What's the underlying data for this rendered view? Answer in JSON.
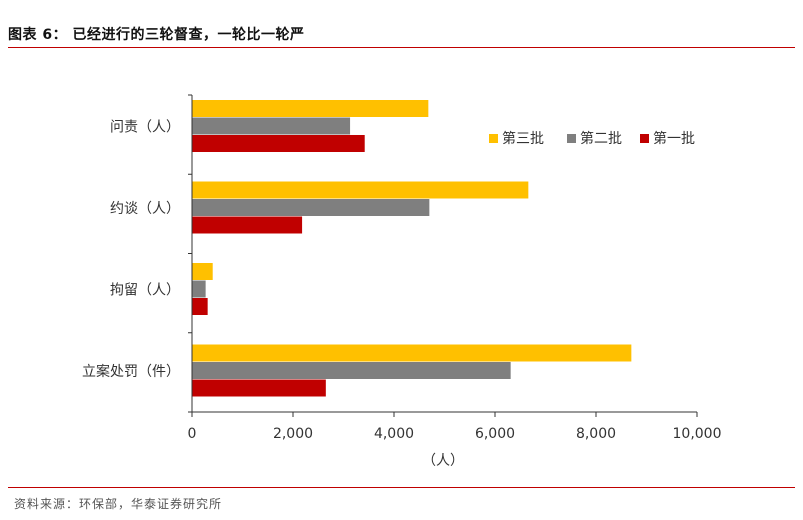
{
  "figure_title": "图表 6：  已经进行的三轮督查，一轮比一轮严",
  "source": "资料来源：环保部，华泰证券研究所",
  "chart_data": {
    "type": "bar",
    "orientation": "horizontal",
    "categories": [
      "问责（人）",
      "约谈（人）",
      "拘留（人）",
      "立案处罚（件）"
    ],
    "series": [
      {
        "name": "第三批",
        "color": "#FFC000",
        "values": [
          4680,
          6660,
          410,
          8700
        ]
      },
      {
        "name": "第二批",
        "color": "#7F7F7F",
        "values": [
          3130,
          4700,
          270,
          6310
        ]
      },
      {
        "name": "第一批",
        "color": "#C00000",
        "values": [
          3420,
          2180,
          310,
          2650
        ]
      }
    ],
    "xlabel": "（人）",
    "xlim": [
      0,
      10000
    ],
    "xticks": [
      0,
      2000,
      4000,
      6000,
      8000,
      10000
    ],
    "xtick_labels": [
      "0",
      "2,000",
      "4,000",
      "6,000",
      "8,000",
      "10,000"
    ],
    "legend_position": "top-right",
    "grid": false
  }
}
